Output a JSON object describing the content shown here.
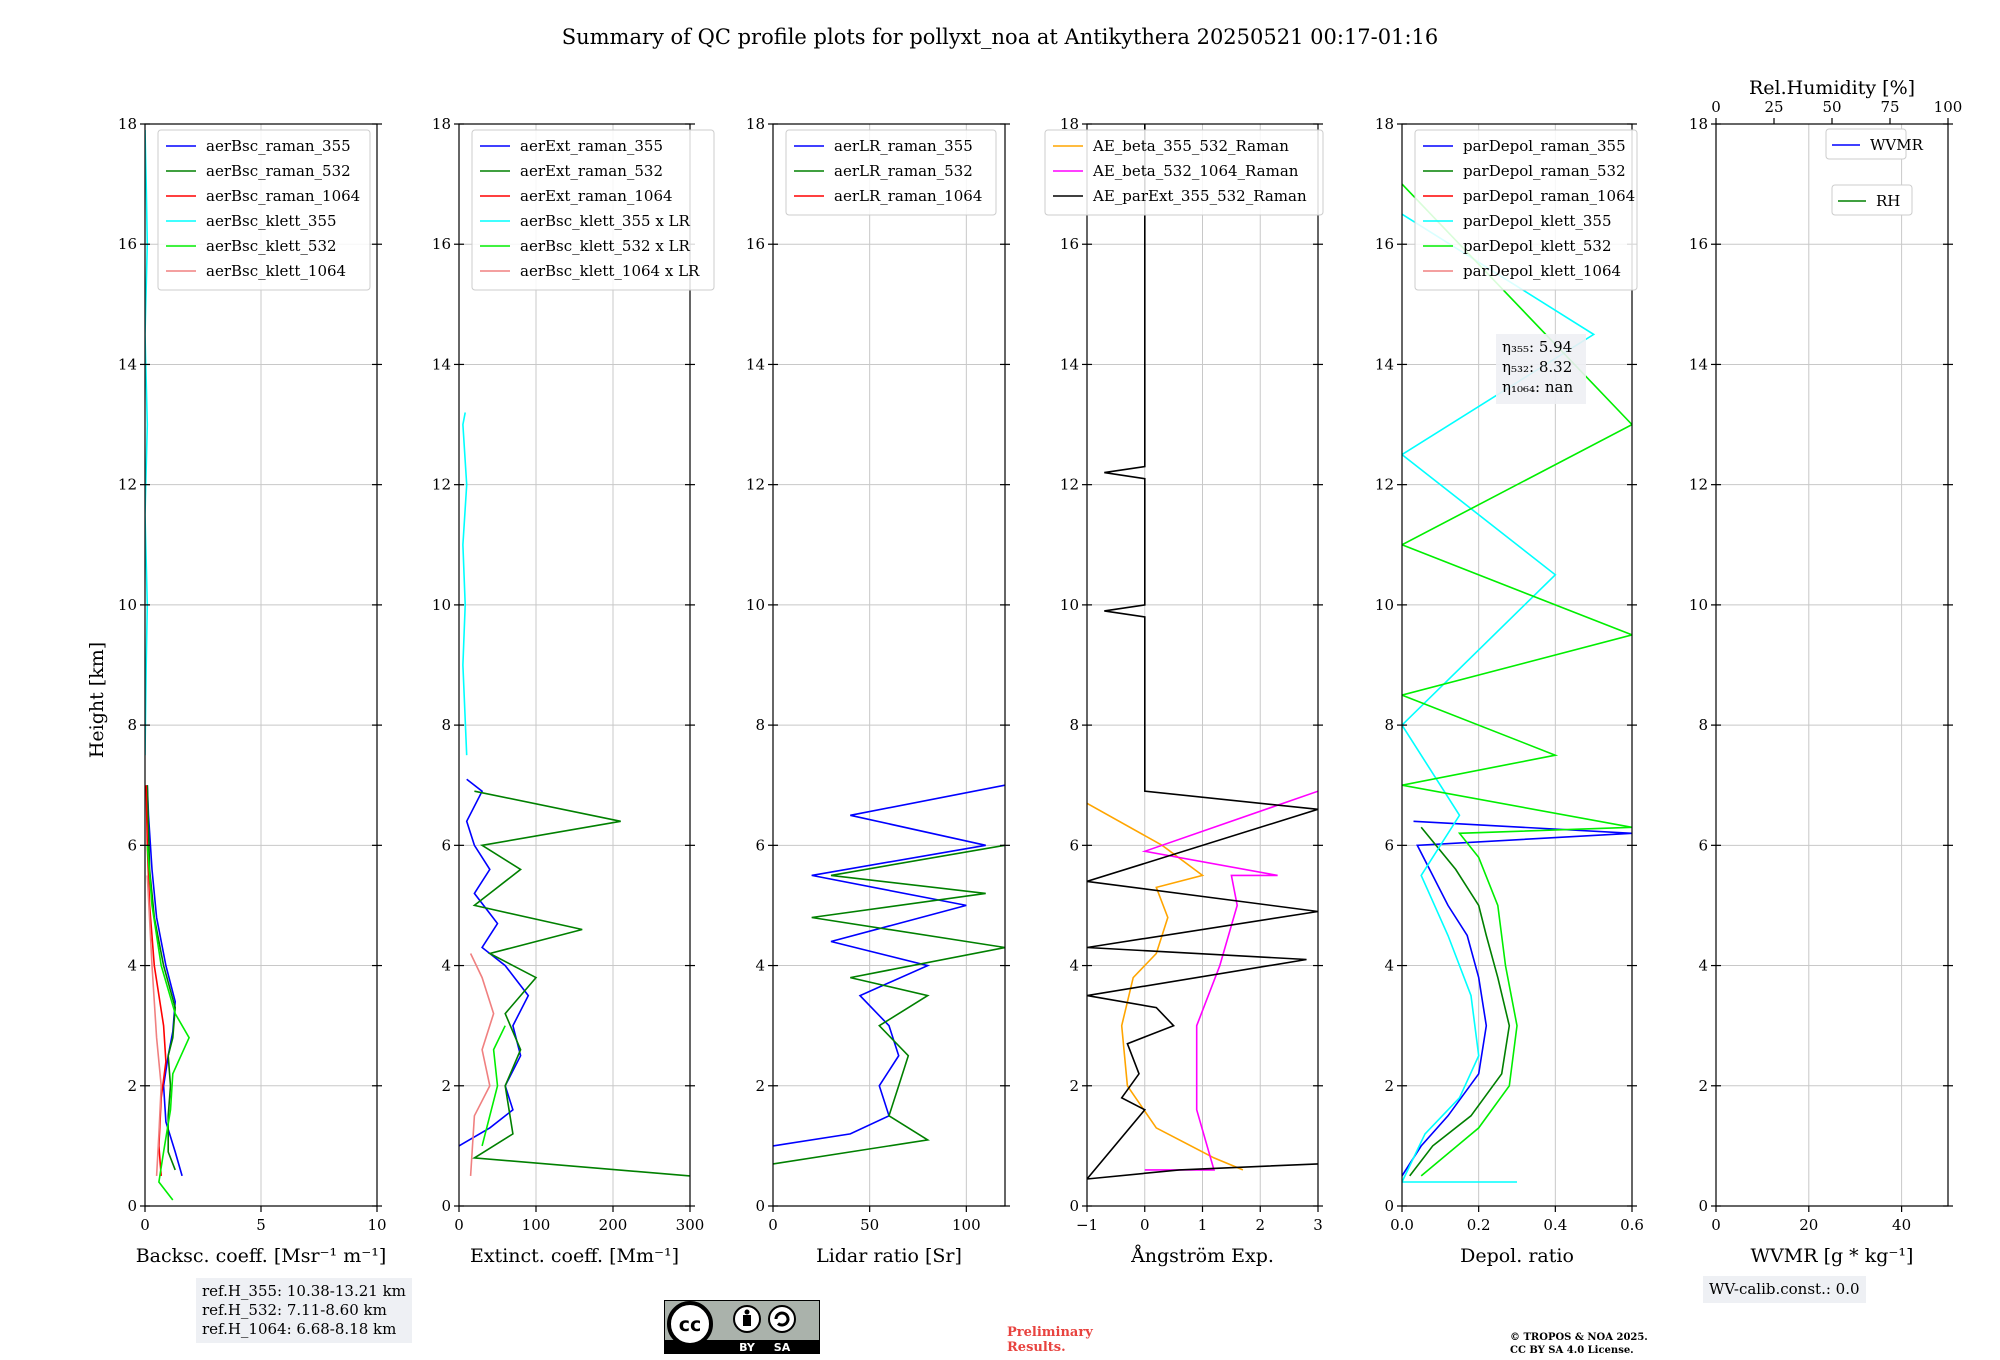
{
  "figure": {
    "title": "Summary of QC profile plots for pollyxt_noa at Antikythera 20250521 00:17-01:16",
    "ylabel": "Height [km]"
  },
  "chart_data": [
    {
      "type": "line",
      "xlabel": "Backsc. coeff. [Msr⁻¹ m⁻¹]",
      "xlim": [
        0,
        10
      ],
      "ylim": [
        0,
        18
      ],
      "xticks": [
        0,
        5,
        10
      ],
      "xtick_labels": [
        "0",
        "5",
        "10"
      ],
      "yticks": [
        0,
        2,
        4,
        6,
        8,
        10,
        12,
        14,
        16,
        18
      ],
      "ytick_labels": [
        "0",
        "2",
        "4",
        "6",
        "8",
        "10",
        "12",
        "14",
        "16",
        "18"
      ],
      "legend": [
        "aerBsc_raman_355",
        "aerBsc_raman_532",
        "aerBsc_raman_1064",
        "aerBsc_klett_355",
        "aerBsc_klett_532",
        "aerBsc_klett_1064"
      ],
      "series": [
        {
          "name": "aerBsc_raman_355",
          "color": "#0000ff",
          "x": [
            1.6,
            1.3,
            0.9,
            0.8,
            1.0,
            1.2,
            1.3,
            0.9,
            0.5,
            0.3,
            0.15,
            0.1
          ],
          "y": [
            0.5,
            0.9,
            1.4,
            2.0,
            2.5,
            2.9,
            3.4,
            4.0,
            4.8,
            5.6,
            6.5,
            7.0
          ]
        },
        {
          "name": "aerBsc_raman_532",
          "color": "#008000",
          "x": [
            1.3,
            1.0,
            1.0,
            1.1,
            1.0,
            1.2,
            1.3,
            0.8,
            0.4,
            0.2,
            0.1
          ],
          "y": [
            0.6,
            0.9,
            1.5,
            2.0,
            2.5,
            2.8,
            3.3,
            4.0,
            4.8,
            5.6,
            7.0
          ]
        },
        {
          "name": "aerBsc_raman_1064",
          "color": "#ff0000",
          "x": [
            0.7,
            0.6,
            0.7,
            0.9,
            0.8,
            0.4,
            0.2,
            0.1,
            0.05
          ],
          "y": [
            0.5,
            1.0,
            1.8,
            2.4,
            3.0,
            4.0,
            5.0,
            6.0,
            7.0
          ]
        },
        {
          "name": "aerBsc_klett_355",
          "color": "#00ffff",
          "x": [
            0.0,
            0.05,
            0.1,
            0.0,
            0.1,
            0.0,
            0.1,
            0.05,
            0.0
          ],
          "y": [
            7.5,
            9.0,
            10.0,
            11.5,
            13.0,
            14.5,
            16.0,
            17.0,
            17.9
          ]
        },
        {
          "name": "aerBsc_klett_532",
          "color": "#00ee00",
          "x": [
            1.2,
            0.6,
            0.8,
            1.1,
            1.2,
            1.9,
            1.3,
            0.7,
            0.3,
            0.1
          ],
          "y": [
            0.1,
            0.4,
            0.9,
            1.6,
            2.2,
            2.8,
            3.2,
            4.0,
            5.0,
            6.0
          ]
        },
        {
          "name": "aerBsc_klett_1064",
          "color": "#f08080",
          "x": [
            0.5,
            0.6,
            0.7,
            0.5,
            0.3,
            0.1
          ],
          "y": [
            0.5,
            1.2,
            2.0,
            2.8,
            4.0,
            5.5
          ]
        }
      ]
    },
    {
      "type": "line",
      "xlabel": "Extinct. coeff. [Mm⁻¹]",
      "xlim": [
        0,
        300
      ],
      "ylim": [
        0,
        18
      ],
      "xticks": [
        0,
        100,
        200,
        300
      ],
      "xtick_labels": [
        "0",
        "100",
        "200",
        "300"
      ],
      "yticks": [
        0,
        2,
        4,
        6,
        8,
        10,
        12,
        14,
        16,
        18
      ],
      "ytick_labels": [
        "0",
        "2",
        "4",
        "6",
        "8",
        "10",
        "12",
        "14",
        "16",
        "18"
      ],
      "legend": [
        "aerExt_raman_355",
        "aerExt_raman_532",
        "aerExt_raman_1064",
        "aerBsc_klett_355 x LR",
        "aerBsc_klett_532 x LR",
        "aerBsc_klett_1064 x LR"
      ],
      "series": [
        {
          "name": "aerExt_raman_355",
          "color": "#0000ff",
          "x": [
            0,
            40,
            70,
            60,
            80,
            70,
            90,
            60,
            30,
            50,
            20,
            40,
            20,
            10,
            30,
            10
          ],
          "y": [
            1.0,
            1.3,
            1.6,
            2.0,
            2.5,
            3.0,
            3.5,
            4.0,
            4.3,
            4.7,
            5.2,
            5.6,
            6.0,
            6.4,
            6.9,
            7.1
          ]
        },
        {
          "name": "aerExt_raman_532",
          "color": "#008000",
          "x": [
            300,
            20,
            70,
            60,
            80,
            60,
            100,
            40,
            160,
            20,
            80,
            30,
            210,
            20
          ],
          "y": [
            0.5,
            0.8,
            1.2,
            2.0,
            2.6,
            3.2,
            3.8,
            4.2,
            4.6,
            5.0,
            5.6,
            6.0,
            6.4,
            6.9
          ]
        },
        {
          "name": "aerBsc_klett_355 x LR",
          "color": "#00ffff",
          "x": [
            10,
            5,
            8,
            5,
            10,
            5,
            8
          ],
          "y": [
            7.5,
            9.0,
            10.0,
            11.0,
            12.0,
            13.0,
            13.2
          ]
        },
        {
          "name": "aerBsc_klett_532 x LR",
          "color": "#00ee00",
          "x": [
            30,
            40,
            50,
            45,
            60
          ],
          "y": [
            1.0,
            1.5,
            2.0,
            2.6,
            3.0
          ]
        },
        {
          "name": "aerBsc_klett_1064 x LR",
          "color": "#f08080",
          "x": [
            15,
            20,
            40,
            30,
            45,
            30,
            15
          ],
          "y": [
            0.5,
            1.5,
            2.0,
            2.6,
            3.2,
            3.8,
            4.2
          ]
        }
      ]
    },
    {
      "type": "line",
      "xlabel": "Lidar ratio [Sr]",
      "xlim": [
        0,
        120
      ],
      "ylim": [
        0,
        18
      ],
      "xticks": [
        0,
        50,
        100
      ],
      "xtick_labels": [
        "0",
        "50",
        "100"
      ],
      "yticks": [
        0,
        2,
        4,
        6,
        8,
        10,
        12,
        14,
        16,
        18
      ],
      "ytick_labels": [
        "0",
        "2",
        "4",
        "6",
        "8",
        "10",
        "12",
        "14",
        "16",
        "18"
      ],
      "legend": [
        "aerLR_raman_355",
        "aerLR_raman_532",
        "aerLR_raman_1064"
      ],
      "series": [
        {
          "name": "aerLR_raman_355",
          "color": "#0000ff",
          "x": [
            0,
            40,
            60,
            55,
            65,
            60,
            45,
            80,
            30,
            100,
            20,
            110,
            40,
            120
          ],
          "y": [
            1.0,
            1.2,
            1.5,
            2.0,
            2.5,
            3.0,
            3.5,
            4.0,
            4.4,
            5.0,
            5.5,
            6.0,
            6.5,
            7.0
          ]
        },
        {
          "name": "aerLR_raman_532",
          "color": "#008000",
          "x": [
            0,
            80,
            60,
            65,
            70,
            55,
            80,
            40,
            120,
            20,
            110,
            30,
            120
          ],
          "y": [
            0.7,
            1.1,
            1.5,
            2.0,
            2.5,
            3.0,
            3.5,
            3.8,
            4.3,
            4.8,
            5.2,
            5.5,
            6.0
          ]
        }
      ]
    },
    {
      "type": "line",
      "xlabel": "Ångström Exp.",
      "xlim": [
        -1,
        3
      ],
      "ylim": [
        0,
        18
      ],
      "xticks": [
        -1,
        0,
        1,
        2,
        3
      ],
      "xtick_labels": [
        "−1",
        "0",
        "1",
        "2",
        "3"
      ],
      "yticks": [
        0,
        2,
        4,
        6,
        8,
        10,
        12,
        14,
        16,
        18
      ],
      "ytick_labels": [
        "0",
        "2",
        "4",
        "6",
        "8",
        "10",
        "12",
        "14",
        "16",
        "18"
      ],
      "legend": [
        "AE_beta_355_532_Raman",
        "AE_beta_532_1064_Raman",
        "AE_parExt_355_532_Raman"
      ],
      "series": [
        {
          "name": "AE_beta_355_532_Raman",
          "color": "#ffa500",
          "x": [
            1.7,
            1.2,
            0.2,
            -0.3,
            -0.4,
            -0.2,
            0.2,
            0.4,
            0.2,
            1.0,
            0.3,
            -1.0
          ],
          "y": [
            0.6,
            0.8,
            1.3,
            2.0,
            3.0,
            3.8,
            4.2,
            4.8,
            5.3,
            5.5,
            6.0,
            6.7
          ]
        },
        {
          "name": "AE_beta_532_1064_Raman",
          "color": "#ff00ff",
          "x": [
            0.0,
            1.2,
            0.9,
            0.9,
            1.3,
            1.6,
            1.5,
            2.3,
            0.0,
            3.0
          ],
          "y": [
            0.6,
            0.6,
            1.6,
            3.0,
            4.0,
            5.0,
            5.5,
            5.5,
            5.9,
            6.9
          ]
        },
        {
          "name": "AE_parExt_355_532_Raman",
          "color": "#000000",
          "x": [
            3.0,
            0.6,
            -1.0,
            0.0,
            -0.4,
            -0.1,
            -0.3,
            0.5,
            0.2,
            -1.0,
            2.8,
            -1.0,
            3.0,
            -1.0,
            3.0,
            0.0,
            0.0,
            -0.7,
            0.0,
            0.0,
            -0.7,
            0.0,
            0.0
          ],
          "y": [
            0.7,
            0.6,
            0.45,
            1.6,
            1.8,
            2.2,
            2.7,
            3.0,
            3.3,
            3.5,
            4.1,
            4.3,
            4.9,
            5.4,
            6.6,
            6.9,
            9.8,
            9.9,
            10.0,
            12.1,
            12.2,
            12.3,
            18.0
          ]
        }
      ]
    },
    {
      "type": "line",
      "xlabel": "Depol. ratio",
      "xlim": [
        0.0,
        0.6
      ],
      "ylim": [
        0,
        18
      ],
      "xticks": [
        0.0,
        0.2,
        0.4,
        0.6
      ],
      "xtick_labels": [
        "0.0",
        "0.2",
        "0.4",
        "0.6"
      ],
      "yticks": [
        0,
        2,
        4,
        6,
        8,
        10,
        12,
        14,
        16,
        18
      ],
      "ytick_labels": [
        "0",
        "2",
        "4",
        "6",
        "8",
        "10",
        "12",
        "14",
        "16",
        "18"
      ],
      "legend": [
        "parDepol_raman_355",
        "parDepol_raman_532",
        "parDepol_raman_1064",
        "parDepol_klett_355",
        "parDepol_klett_532",
        "parDepol_klett_1064"
      ],
      "annotation": {
        "lines": [
          "η₃₅₅: 5.94",
          "η₅₃₂: 8.32",
          "η₁₀₆₄: nan"
        ]
      },
      "series": [
        {
          "name": "parDepol_raman_355",
          "color": "#0000ff",
          "x": [
            0.0,
            0.05,
            0.12,
            0.2,
            0.22,
            0.2,
            0.17,
            0.12,
            0.08,
            0.04,
            0.6,
            0.03
          ],
          "y": [
            0.5,
            1.0,
            1.5,
            2.2,
            3.0,
            3.8,
            4.5,
            5.0,
            5.5,
            6.0,
            6.2,
            6.4
          ]
        },
        {
          "name": "parDepol_raman_532",
          "color": "#008000",
          "x": [
            0.02,
            0.08,
            0.18,
            0.26,
            0.28,
            0.25,
            0.22,
            0.2,
            0.14,
            0.05
          ],
          "y": [
            0.5,
            1.0,
            1.5,
            2.2,
            3.0,
            3.8,
            4.5,
            5.0,
            5.6,
            6.3
          ]
        },
        {
          "name": "parDepol_klett_355",
          "color": "#00ffff",
          "x": [
            0.3,
            0.0,
            0.06,
            0.15,
            0.2,
            0.18,
            0.12,
            0.05,
            0.15,
            0.0,
            0.4,
            0.0,
            0.5,
            0.0
          ],
          "y": [
            0.4,
            0.4,
            1.2,
            1.8,
            2.5,
            3.5,
            4.5,
            5.5,
            6.5,
            8.0,
            10.5,
            12.5,
            14.5,
            16.5
          ]
        },
        {
          "name": "parDepol_klett_532",
          "color": "#00ee00",
          "x": [
            0.05,
            0.2,
            0.28,
            0.3,
            0.27,
            0.25,
            0.2,
            0.15,
            0.6,
            0.0,
            0.4,
            0.0,
            0.6,
            0.0,
            0.6,
            0.0
          ],
          "y": [
            0.5,
            1.3,
            2.0,
            3.0,
            4.0,
            5.0,
            5.8,
            6.2,
            6.3,
            7.0,
            7.5,
            8.5,
            9.5,
            11.0,
            13.0,
            17.0
          ]
        }
      ]
    },
    {
      "type": "line",
      "xlabel": "WVMR [g * kg⁻¹]",
      "xlim": [
        0,
        50
      ],
      "ylim": [
        0,
        18
      ],
      "xticks": [
        0,
        20,
        40
      ],
      "xtick_labels": [
        "0",
        "20",
        "40"
      ],
      "yticks": [
        0,
        2,
        4,
        6,
        8,
        10,
        12,
        14,
        16,
        18
      ],
      "ytick_labels": [
        "0",
        "2",
        "4",
        "6",
        "8",
        "10",
        "12",
        "14",
        "16",
        "18"
      ],
      "top_axis": {
        "label": "Rel.Humidity [%]",
        "xlim": [
          0,
          100
        ],
        "xticks": [
          0,
          25,
          50,
          75,
          100
        ],
        "xtick_labels": [
          "0",
          "25",
          "50",
          "75",
          "100"
        ]
      },
      "legend": [
        "WVMR",
        "RH"
      ],
      "series": []
    }
  ],
  "notes": {
    "ref_heights": [
      "ref.H_355: 10.38-13.21 km",
      "ref.H_532: 7.11-8.60 km",
      "ref.H_1064: 6.68-8.18 km"
    ],
    "wv_calib": "WV-calib.const.: 0.0",
    "preliminary": [
      "Preliminary",
      "Results."
    ],
    "copyright": [
      "© TROPOS & NOA 2025.",
      "CC BY SA 4.0 License."
    ],
    "license_badge": {
      "cc": "cc",
      "by": "BY",
      "sa": "SA"
    }
  },
  "colors": {
    "grid": "#c8c8c8",
    "legend_edge": "#cccccc",
    "note_bg": "#eef0f4",
    "prelim": "#e8433f"
  }
}
